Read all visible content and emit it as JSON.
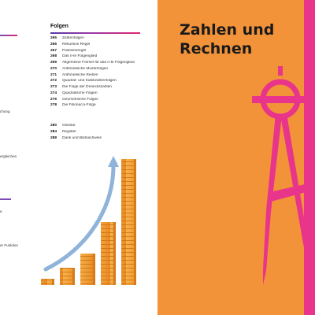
{
  "left_page": {
    "fragments": [
      "chung",
      "ergleichen",
      "e",
      "er Funktion"
    ],
    "section_title": "Folgen",
    "toc": [
      {
        "page": "265",
        "label": "Zahlenfolgen"
      },
      {
        "page": "266",
        "label": "Rekursive Regel"
      },
      {
        "page": "267",
        "label": "Positionsregel"
      },
      {
        "page": "268",
        "label": "Das n-te Folgenglied"
      },
      {
        "page": "269",
        "label": "Allgemeine Formel für das n-te Folgenglied"
      },
      {
        "page": "270",
        "label": "Arithmetische Musterfolgen"
      },
      {
        "page": "271",
        "label": "Arithmetische Reihen"
      },
      {
        "page": "272",
        "label": "Quadrat- und Kubikzahlenfolgen"
      },
      {
        "page": "273",
        "label": "Die Folge der Dreieckszahlen"
      },
      {
        "page": "274",
        "label": "Quadratische Folgen"
      },
      {
        "page": "276",
        "label": "Geometrische Folgen"
      },
      {
        "page": "278",
        "label": "Die Fibonacci-Folge"
      }
    ],
    "toc_end": [
      {
        "page": "280",
        "label": "Glossar"
      },
      {
        "page": "284",
        "label": "Register"
      },
      {
        "page": "288",
        "label": "Dank und Bildnachweis"
      }
    ]
  },
  "right_page": {
    "title_line1": "Zahlen und",
    "title_line2": "Rechnen"
  },
  "colors": {
    "orange": "#f2933a",
    "magenta": "#e8348a",
    "purple": "#7b4bb5",
    "block_orange": "#f4a23c",
    "arrow_blue": "#8fb3d9"
  },
  "icons": [
    "growing-columns-illustration",
    "curved-arrow-icon",
    "compass-icon"
  ]
}
